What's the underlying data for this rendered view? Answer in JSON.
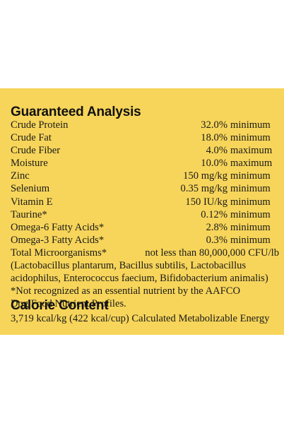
{
  "guaranteed_analysis": {
    "heading": "Guaranteed Analysis",
    "rows": [
      {
        "name": "Crude Protein",
        "amount": "32.0%",
        "qualifier": "minimum"
      },
      {
        "name": "Crude Fat",
        "amount": "18.0%",
        "qualifier": "minimum"
      },
      {
        "name": "Crude Fiber",
        "amount": "4.0%",
        "qualifier": "maximum"
      },
      {
        "name": "Moisture",
        "amount": "10.0%",
        "qualifier": "maximum"
      },
      {
        "name": "Zinc",
        "amount": "150 mg/kg",
        "qualifier": "minimum"
      },
      {
        "name": "Selenium",
        "amount": "0.35 mg/kg",
        "qualifier": "minimum"
      },
      {
        "name": "Vitamin E",
        "amount": "150 IU/kg",
        "qualifier": "minimum"
      },
      {
        "name": "Taurine*",
        "amount": "0.12%",
        "qualifier": "minimum"
      },
      {
        "name": "Omega-6 Fatty Acids*",
        "amount": "2.8%",
        "qualifier": "minimum"
      },
      {
        "name": "Omega-3 Fatty Acids*",
        "amount": "0.3%",
        "qualifier": "minimum"
      }
    ],
    "microorganisms": {
      "name": "Total Microorganisms*",
      "value": "not less than 80,000,000 CFU/lb",
      "detail_line1": "(Lactobacillus plantarum, Bacillus subtilis, Lactobacillus",
      "detail_line2": "acidophilus, Enterococcus faecium, Bifidobacterium animalis)"
    },
    "footnote_line1": "*Not recognized as an essential nutrient by the AAFCO",
    "footnote_line2": "Dog Food Nutrient Profiles."
  },
  "calorie_content": {
    "heading": "Calorie Content",
    "text": "3,719 kcal/kg (422 kcal/cup) Calculated Metabolizable Energy"
  },
  "colors": {
    "panel_background": "#f7d55a",
    "page_background": "#ffffff",
    "text": "#1a1a1a"
  }
}
